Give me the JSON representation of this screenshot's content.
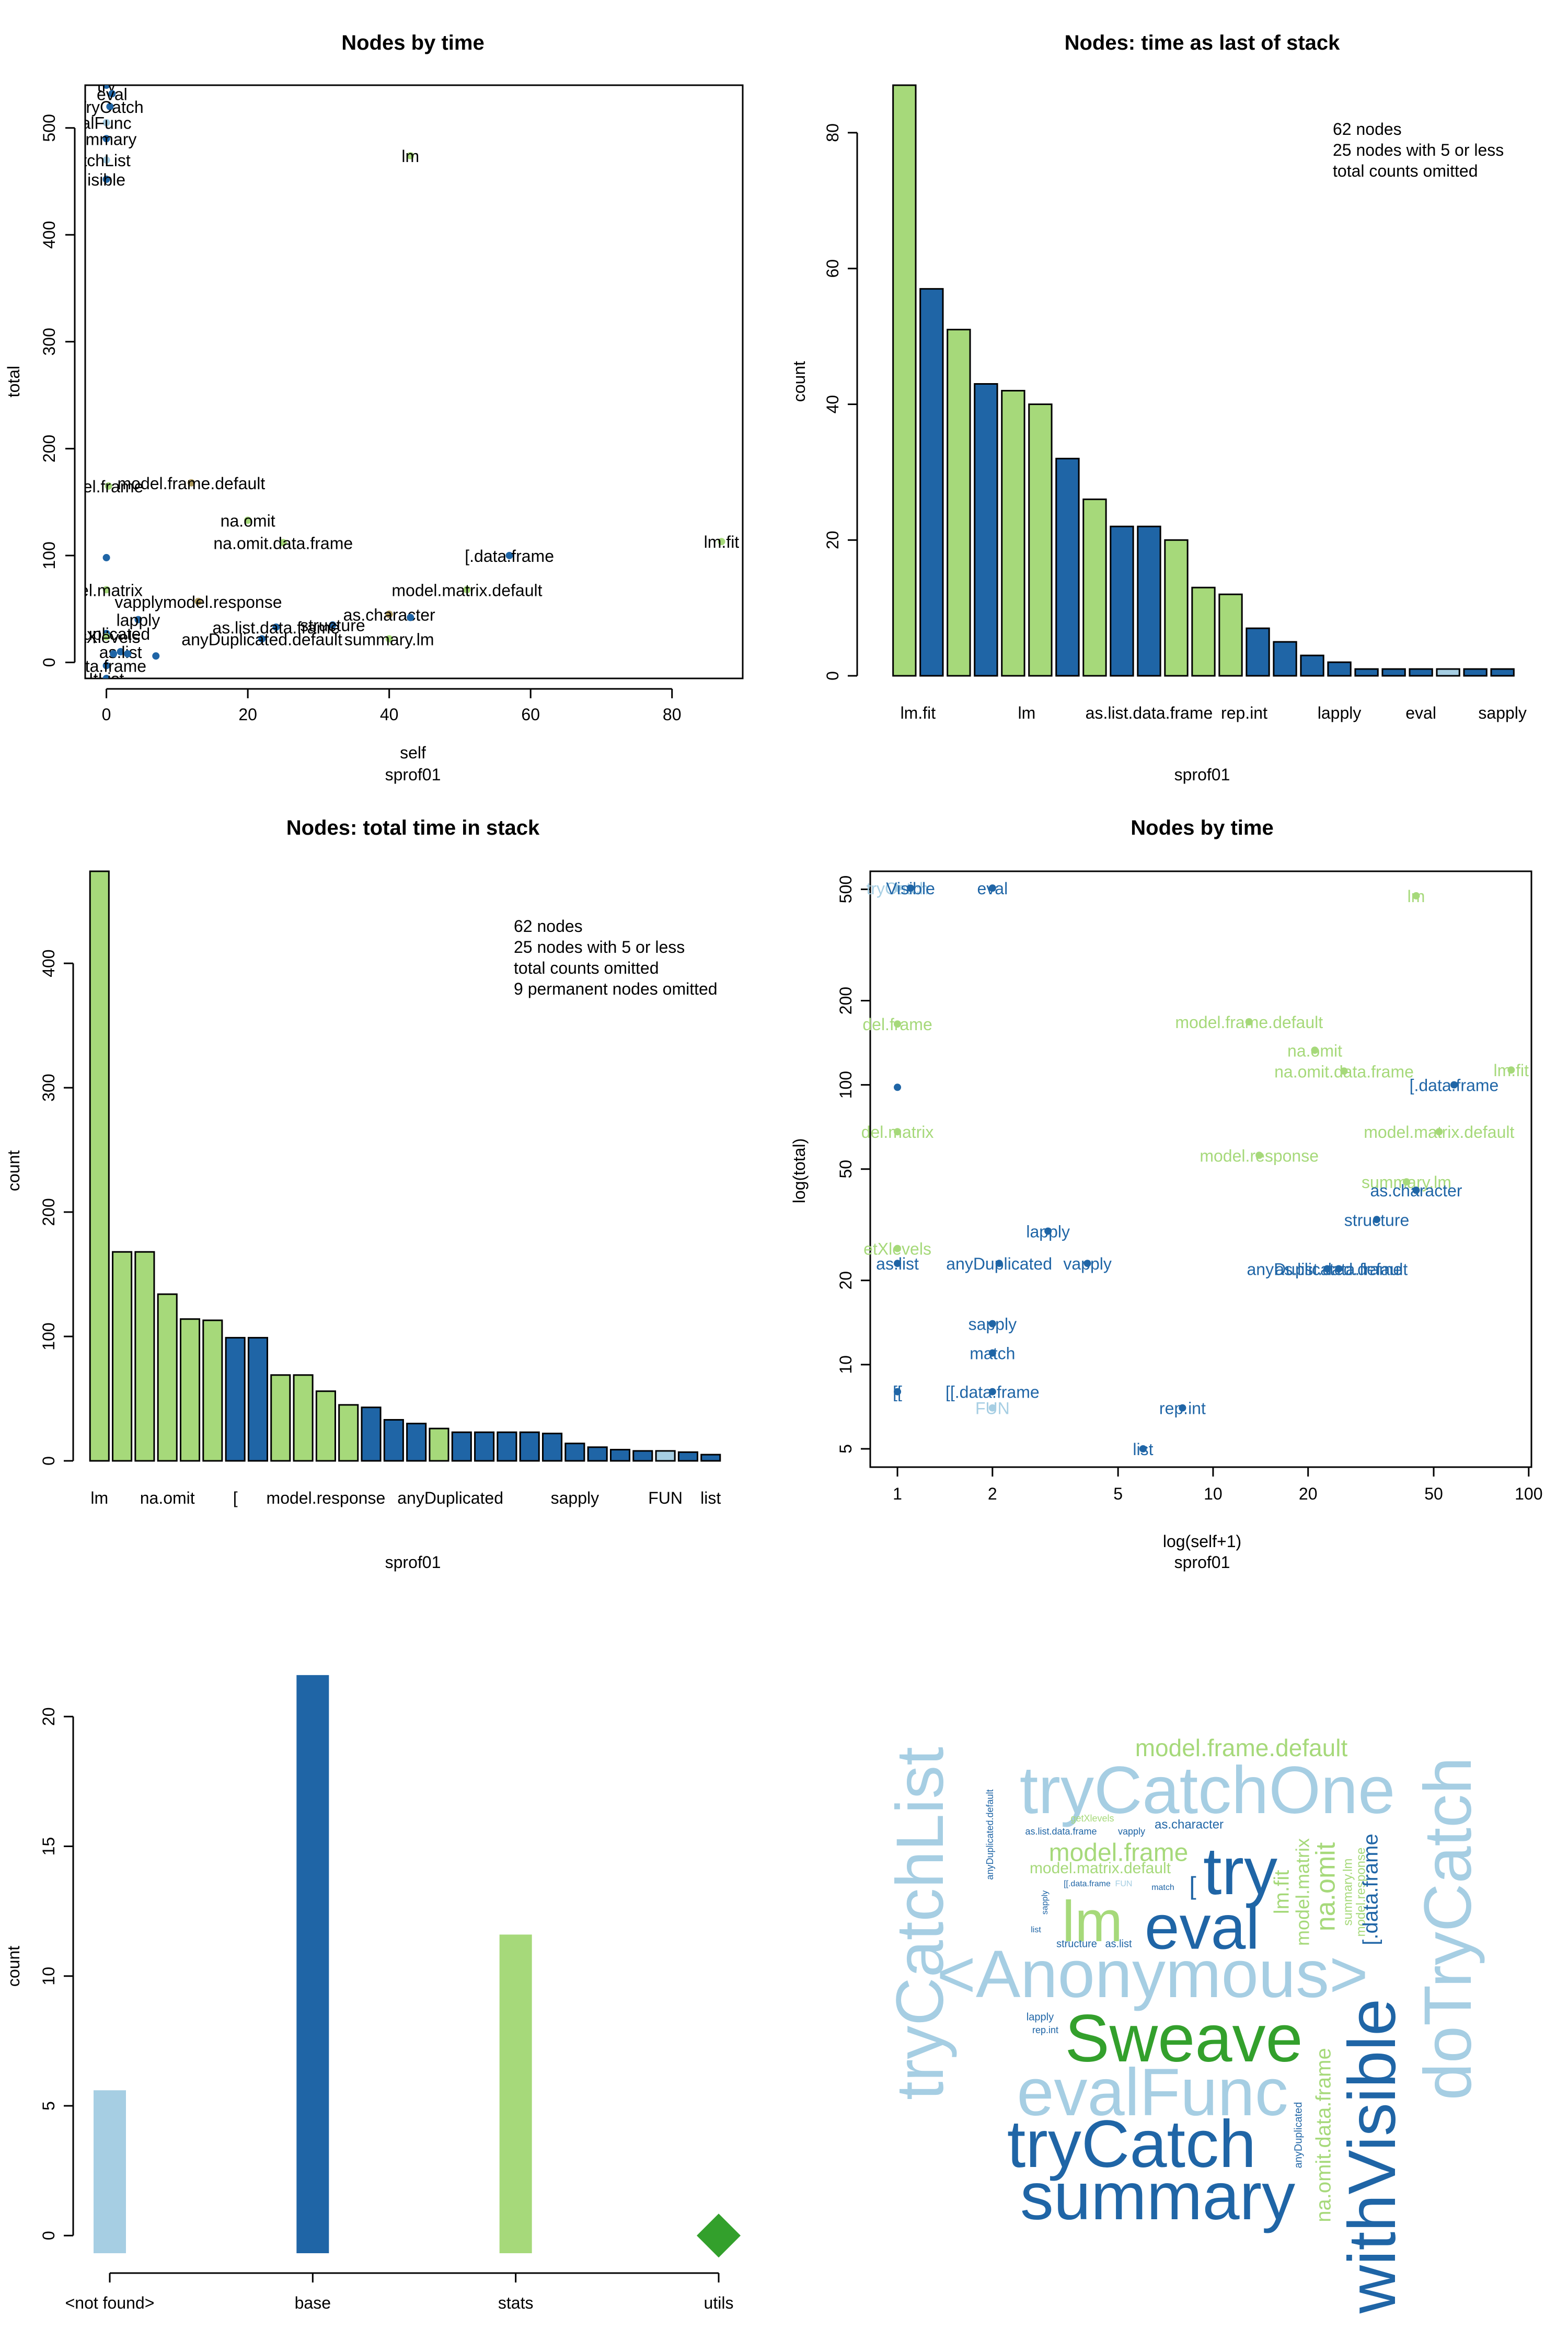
{
  "colors": {
    "light_blue": "#a6cee3",
    "dark_blue": "#1f65a6",
    "light_green": "#a6d97a",
    "dark_green": "#33a02c",
    "olive": "#b09b5e"
  },
  "chart_data": [
    {
      "id": "p1",
      "type": "scatter",
      "title": "Nodes by time",
      "xlabel": "self",
      "sublabel": "sprof01",
      "ylabel": "total",
      "xlim": [
        -3,
        90
      ],
      "ylim": [
        -15,
        540
      ],
      "xticks": [
        0,
        20,
        40,
        60,
        80
      ],
      "yticks": [
        0,
        100,
        200,
        300,
        400,
        500
      ],
      "points": [
        {
          "x": 0,
          "y": 540,
          "label": "try",
          "color": "#1f65a6"
        },
        {
          "x": 0.8,
          "y": 532,
          "label": "eval",
          "color": "#1f65a6"
        },
        {
          "x": 0.5,
          "y": 520,
          "label": "TryCatch",
          "color": "#1f65a6"
        },
        {
          "x": 0,
          "y": 505,
          "label": "alFunc",
          "color": "#a6cee3"
        },
        {
          "x": 0,
          "y": 490,
          "label": "ummary",
          "color": "#1f65a6"
        },
        {
          "x": 0,
          "y": 470,
          "label": "tchList",
          "color": "#a6cee3"
        },
        {
          "x": 0,
          "y": 452,
          "label": "isible",
          "color": "#1f65a6"
        },
        {
          "x": 43,
          "y": 474,
          "label": "lm",
          "color": "#a6d97a"
        },
        {
          "x": 0.3,
          "y": 165,
          "label": "del.frame",
          "color": "#a6d97a"
        },
        {
          "x": 12,
          "y": 168,
          "label": "model.frame.default",
          "color": "#b09b5e"
        },
        {
          "x": 20,
          "y": 133,
          "label": "na.omit",
          "color": "#a6d97a"
        },
        {
          "x": 25,
          "y": 112,
          "label": "na.omit.data.frame",
          "color": "#a6d97a"
        },
        {
          "x": 0,
          "y": 98,
          "label": "",
          "color": "#1f65a6"
        },
        {
          "x": 57,
          "y": 100,
          "label": "[.data.frame",
          "color": "#1f65a6"
        },
        {
          "x": 87,
          "y": 113,
          "label": "lm.fit",
          "color": "#a6d97a"
        },
        {
          "x": 13,
          "y": 57,
          "label": "vapplymodel.response",
          "color": "#b09b5e"
        },
        {
          "x": 0,
          "y": 68,
          "label": "del.matrix",
          "color": "#a6d97a"
        },
        {
          "x": 51,
          "y": 68,
          "label": "model.matrix.default",
          "color": "#a6d97a"
        },
        {
          "x": 4.5,
          "y": 40,
          "label": "lapply",
          "color": "#1f65a6"
        },
        {
          "x": 32,
          "y": 35,
          "label": "structure",
          "color": "#1f65a6"
        },
        {
          "x": 40,
          "y": 45,
          "label": "as.character",
          "color": "#b09b5e"
        },
        {
          "x": 43,
          "y": 42,
          "label": "",
          "color": "#1f65a6"
        },
        {
          "x": 0,
          "y": 27,
          "label": "yDuplicated",
          "color": "#1f65a6"
        },
        {
          "x": 24,
          "y": 33,
          "label": "as.list.data.frame",
          "color": "#1f65a6"
        },
        {
          "x": 22,
          "y": 22,
          "label": "anyDuplicated.default",
          "color": "#1f65a6"
        },
        {
          "x": 40,
          "y": 22,
          "label": "summary.lm",
          "color": "#a6d97a"
        },
        {
          "x": 0,
          "y": 24,
          "label": "etXlevels",
          "color": "#a6d97a"
        },
        {
          "x": 2,
          "y": 10,
          "label": "as.list",
          "color": "#1f65a6"
        },
        {
          "x": 0,
          "y": -3,
          "label": "data.frame",
          "color": "#1f65a6"
        },
        {
          "x": 0,
          "y": -15,
          "label": "ItList",
          "color": "#1f65a6"
        },
        {
          "x": 1,
          "y": 8,
          "label": "",
          "color": "#1f65a6"
        },
        {
          "x": 3,
          "y": 8,
          "label": "",
          "color": "#1f65a6"
        },
        {
          "x": 7,
          "y": 6,
          "label": "",
          "color": "#1f65a6"
        }
      ]
    },
    {
      "id": "p2",
      "type": "bar",
      "title": "Nodes: time as last of stack",
      "xlabel": "sprof01",
      "ylabel": "count",
      "ylim": [
        0,
        87
      ],
      "yticks": [
        0,
        20,
        40,
        60,
        80
      ],
      "note": [
        "62 nodes",
        " 25  nodes with 5 or less",
        " total counts omitted"
      ],
      "values": [
        87,
        57,
        51,
        43,
        42,
        40,
        32,
        26,
        22,
        22,
        20,
        13,
        12,
        7,
        5,
        3,
        2,
        1,
        1,
        1,
        1,
        1,
        1
      ],
      "colors": [
        "#a6d97a",
        "#1f65a6",
        "#a6d97a",
        "#1f65a6",
        "#a6d97a",
        "#a6d97a",
        "#1f65a6",
        "#a6d97a",
        "#1f65a6",
        "#1f65a6",
        "#a6d97a",
        "#a6d97a",
        "#a6d97a",
        "#1f65a6",
        "#1f65a6",
        "#1f65a6",
        "#1f65a6",
        "#1f65a6",
        "#1f65a6",
        "#1f65a6",
        "#a6cee3",
        "#1f65a6",
        "#1f65a6"
      ],
      "category_labels": [
        {
          "index": 0.5,
          "text": "lm.fit"
        },
        {
          "index": 4.5,
          "text": "lm"
        },
        {
          "index": 9,
          "text": "as.list.data.frame"
        },
        {
          "index": 12.5,
          "text": "rep.int"
        },
        {
          "index": 16,
          "text": "lapply"
        },
        {
          "index": 19,
          "text": "eval"
        },
        {
          "index": 22,
          "text": "sapply"
        }
      ]
    },
    {
      "id": "p3",
      "type": "bar",
      "title": "Nodes: total time in stack",
      "xlabel": "sprof01",
      "ylabel": "count",
      "ylim": [
        0,
        474
      ],
      "yticks": [
        0,
        100,
        200,
        300,
        400
      ],
      "note": [
        "62 nodes",
        " 25  nodes with 5 or less",
        " total counts omitted",
        " 9 permanent nodes  omitted"
      ],
      "values": [
        474,
        168,
        168,
        134,
        114,
        113,
        99,
        99,
        69,
        69,
        56,
        45,
        43,
        33,
        30,
        26,
        23,
        23,
        23,
        23,
        22,
        14,
        11,
        9,
        8,
        8,
        7,
        5
      ],
      "colors": [
        "#a6d97a",
        "#a6d97a",
        "#a6d97a",
        "#a6d97a",
        "#a6d97a",
        "#a6d97a",
        "#1f65a6",
        "#1f65a6",
        "#a6d97a",
        "#a6d97a",
        "#a6d97a",
        "#a6d97a",
        "#1f65a6",
        "#1f65a6",
        "#1f65a6",
        "#a6d97a",
        "#1f65a6",
        "#1f65a6",
        "#1f65a6",
        "#1f65a6",
        "#1f65a6",
        "#1f65a6",
        "#1f65a6",
        "#1f65a6",
        "#1f65a6",
        "#a6cee3",
        "#1f65a6",
        "#1f65a6"
      ],
      "category_labels": [
        {
          "index": 0,
          "text": "lm"
        },
        {
          "index": 3,
          "text": "na.omit"
        },
        {
          "index": 6,
          "text": "["
        },
        {
          "index": 10,
          "text": "model.response"
        },
        {
          "index": 15.5,
          "text": "anyDuplicated"
        },
        {
          "index": 21,
          "text": "sapply"
        },
        {
          "index": 25,
          "text": "FUN"
        },
        {
          "index": 27,
          "text": "list"
        }
      ]
    },
    {
      "id": "p4",
      "type": "scatter",
      "title": "Nodes by time",
      "xlabel": "log(self+1)",
      "sublabel": "sprof01",
      "ylabel": "log(total)",
      "log_x": true,
      "log_y": true,
      "xlim": [
        0.82,
        102
      ],
      "ylim": [
        4.3,
        580
      ],
      "xticks": [
        1,
        2,
        5,
        10,
        20,
        50,
        100
      ],
      "yticks": [
        5,
        10,
        20,
        50,
        100,
        200,
        500
      ],
      "points": [
        {
          "x": 1,
          "y": 505,
          "label": "tryCatch",
          "color": "#a6cee3"
        },
        {
          "x": 1.1,
          "y": 505,
          "label": "Visible",
          "color": "#1f65a6"
        },
        {
          "x": 2,
          "y": 505,
          "label": "eval",
          "color": "#1f65a6"
        },
        {
          "x": 44,
          "y": 474,
          "label": "lm",
          "color": "#a6d97a"
        },
        {
          "x": 1,
          "y": 165,
          "label": "del.frame",
          "color": "#a6d97a"
        },
        {
          "x": 13,
          "y": 168,
          "label": "model.frame.default",
          "color": "#a6d97a"
        },
        {
          "x": 21,
          "y": 133,
          "label": "na.omit",
          "color": "#a6d97a"
        },
        {
          "x": 26,
          "y": 112,
          "label": "na.omit.data.frame",
          "color": "#a6d97a"
        },
        {
          "x": 1,
          "y": 98,
          "label": "",
          "color": "#1f65a6"
        },
        {
          "x": 58,
          "y": 100,
          "label": "[.data.frame",
          "color": "#1f65a6"
        },
        {
          "x": 88,
          "y": 113,
          "label": "lm.fit",
          "color": "#a6d97a"
        },
        {
          "x": 1,
          "y": 68,
          "label": "del.matrix",
          "color": "#a6d97a"
        },
        {
          "x": 52,
          "y": 68,
          "label": "model.matrix.default",
          "color": "#a6d97a"
        },
        {
          "x": 14,
          "y": 56,
          "label": "model.response",
          "color": "#a6d97a"
        },
        {
          "x": 41,
          "y": 45,
          "label": "summary.lm",
          "color": "#a6d97a"
        },
        {
          "x": 44,
          "y": 42,
          "label": "as.character",
          "color": "#1f65a6"
        },
        {
          "x": 33,
          "y": 33,
          "label": "structure",
          "color": "#1f65a6"
        },
        {
          "x": 3,
          "y": 30,
          "label": "lapply",
          "color": "#1f65a6"
        },
        {
          "x": 1,
          "y": 26,
          "label": "etXlevels",
          "color": "#a6d97a"
        },
        {
          "x": 1,
          "y": 23,
          "label": "as.list",
          "color": "#1f65a6"
        },
        {
          "x": 2.1,
          "y": 23,
          "label": "anyDuplicated",
          "color": "#1f65a6"
        },
        {
          "x": 4,
          "y": 23,
          "label": "vapply",
          "color": "#1f65a6"
        },
        {
          "x": 23,
          "y": 22,
          "label": "anyDuplicated.default",
          "color": "#1f65a6"
        },
        {
          "x": 25,
          "y": 22,
          "label": "as.list.data.frame",
          "color": "#1f65a6"
        },
        {
          "x": 2,
          "y": 14,
          "label": "sapply",
          "color": "#1f65a6"
        },
        {
          "x": 2,
          "y": 11,
          "label": "match",
          "color": "#1f65a6"
        },
        {
          "x": 1,
          "y": 8,
          "label": "[[",
          "color": "#1f65a6"
        },
        {
          "x": 2,
          "y": 8,
          "label": "[[.data.frame",
          "color": "#1f65a6"
        },
        {
          "x": 2,
          "y": 7,
          "label": "FUN",
          "color": "#a6cee3"
        },
        {
          "x": 8,
          "y": 7,
          "label": "rep.int",
          "color": "#1f65a6"
        },
        {
          "x": 6,
          "y": 5,
          "label": "list",
          "color": "#1f65a6"
        }
      ]
    },
    {
      "id": "p5",
      "type": "bar",
      "ylabel": "count",
      "ylim": [
        -0.8,
        22
      ],
      "yticks": [
        0,
        5,
        10,
        15,
        20
      ],
      "categories": [
        "<not found>",
        "base",
        "stats",
        "utils"
      ],
      "values": [
        5.6,
        21.6,
        11.6,
        0
      ],
      "colors": [
        "#a6cee3",
        "#1f65a6",
        "#a6d97a",
        "#33a02c"
      ],
      "markers": [
        "bar",
        "bar",
        "bar",
        "diamond"
      ]
    }
  ],
  "wordcloud": [
    {
      "text": "model.frame.default",
      "x": 2375,
      "y": 3348,
      "size": 46,
      "rot": 0,
      "color": "#a6d97a"
    },
    {
      "text": "tryCatchOne",
      "x": 2310,
      "y": 3435,
      "size": 128,
      "rot": 0,
      "color": "#a6cee3"
    },
    {
      "text": "tryCatchList",
      "x": 1770,
      "y": 3680,
      "size": 128,
      "rot": -90,
      "color": "#a6cee3"
    },
    {
      "text": "doTryCatch",
      "x": 2780,
      "y": 3690,
      "size": 128,
      "rot": -90,
      "color": "#a6cee3"
    },
    {
      "text": "try",
      "x": 2373,
      "y": 3590,
      "size": 128,
      "rot": 0,
      "color": "#1f65a6"
    },
    {
      "text": "lm",
      "x": 2090,
      "y": 3685,
      "size": 110,
      "rot": 0,
      "color": "#a6d97a"
    },
    {
      "text": "eval",
      "x": 2300,
      "y": 3697,
      "size": 120,
      "rot": 0,
      "color": "#1f65a6"
    },
    {
      "text": "<Anonymous>",
      "x": 2205,
      "y": 3787,
      "size": 128,
      "rot": 0,
      "color": "#a6cee3"
    },
    {
      "text": "Sweave",
      "x": 2265,
      "y": 3910,
      "size": 128,
      "rot": 0,
      "color": "#33a02c"
    },
    {
      "text": "evalFunc",
      "x": 2205,
      "y": 4013,
      "size": 128,
      "rot": 0,
      "color": "#a6cee3"
    },
    {
      "text": "tryCatch",
      "x": 2165,
      "y": 4112,
      "size": 128,
      "rot": 0,
      "color": "#1f65a6"
    },
    {
      "text": "summary",
      "x": 2215,
      "y": 4212,
      "size": 128,
      "rot": 0,
      "color": "#1f65a6"
    },
    {
      "text": "withVisible",
      "x": 2635,
      "y": 4125,
      "size": 128,
      "rot": -90,
      "color": "#1f65a6"
    },
    {
      "text": "model.frame",
      "x": 2140,
      "y": 3548,
      "size": 48,
      "rot": 0,
      "color": "#a6d97a"
    },
    {
      "text": "model.matrix.default",
      "x": 2105,
      "y": 3576,
      "size": 30,
      "rot": 0,
      "color": "#a6d97a"
    },
    {
      "text": "as.character",
      "x": 2275,
      "y": 3492,
      "size": 24,
      "rot": 0,
      "color": "#1f65a6"
    },
    {
      "text": "as.list.data.frame",
      "x": 2030,
      "y": 3505,
      "size": 18,
      "rot": 0,
      "color": "#1f65a6"
    },
    {
      "text": "vapply",
      "x": 2165,
      "y": 3505,
      "size": 18,
      "rot": 0,
      "color": "#1f65a6"
    },
    {
      "text": "getXlevels",
      "x": 2090,
      "y": 3480,
      "size": 18,
      "rot": 0,
      "color": "#a6d97a"
    },
    {
      "text": "anyDuplicated.default",
      "x": 1895,
      "y": 3510,
      "size": 18,
      "rot": -90,
      "color": "#1f65a6"
    },
    {
      "text": "[[.data.frame",
      "x": 2080,
      "y": 3605,
      "size": 16,
      "rot": 0,
      "color": "#1f65a6"
    },
    {
      "text": "FUN",
      "x": 2150,
      "y": 3605,
      "size": 16,
      "rot": 0,
      "color": "#a6cee3"
    },
    {
      "text": "match",
      "x": 2225,
      "y": 3612,
      "size": 16,
      "rot": 0,
      "color": "#1f65a6"
    },
    {
      "text": "[",
      "x": 2282,
      "y": 3612,
      "size": 48,
      "rot": 0,
      "color": "#1f65a6"
    },
    {
      "text": "sapply",
      "x": 2000,
      "y": 3640,
      "size": 16,
      "rot": -90,
      "color": "#1f65a6"
    },
    {
      "text": "list",
      "x": 1982,
      "y": 3693,
      "size": 16,
      "rot": 0,
      "color": "#1f65a6"
    },
    {
      "text": "structure",
      "x": 2060,
      "y": 3720,
      "size": 20,
      "rot": 0,
      "color": "#1f65a6"
    },
    {
      "text": "as.list",
      "x": 2140,
      "y": 3720,
      "size": 20,
      "rot": 0,
      "color": "#1f65a6"
    },
    {
      "text": "lm.fit",
      "x": 2455,
      "y": 3620,
      "size": 40,
      "rot": -90,
      "color": "#a6d97a"
    },
    {
      "text": "model.matrix",
      "x": 2495,
      "y": 3620,
      "size": 36,
      "rot": -90,
      "color": "#a6d97a"
    },
    {
      "text": "na.omit",
      "x": 2540,
      "y": 3610,
      "size": 52,
      "rot": -90,
      "color": "#a6d97a"
    },
    {
      "text": "summary.lm",
      "x": 2580,
      "y": 3620,
      "size": 24,
      "rot": -90,
      "color": "#a6d97a"
    },
    {
      "text": "model.response",
      "x": 2605,
      "y": 3620,
      "size": 24,
      "rot": -90,
      "color": "#a6d97a"
    },
    {
      "text": "[.data.frame",
      "x": 2625,
      "y": 3615,
      "size": 40,
      "rot": -90,
      "color": "#1f65a6"
    },
    {
      "text": "lapply",
      "x": 1990,
      "y": 3860,
      "size": 20,
      "rot": 0,
      "color": "#1f65a6"
    },
    {
      "text": "rep.int",
      "x": 2000,
      "y": 3885,
      "size": 18,
      "rot": 0,
      "color": "#1f65a6"
    },
    {
      "text": "anyDuplicated",
      "x": 2485,
      "y": 4085,
      "size": 20,
      "rot": -90,
      "color": "#1f65a6"
    },
    {
      "text": "na.omit.data.frame",
      "x": 2535,
      "y": 4085,
      "size": 40,
      "rot": -90,
      "color": "#a6d97a"
    }
  ]
}
